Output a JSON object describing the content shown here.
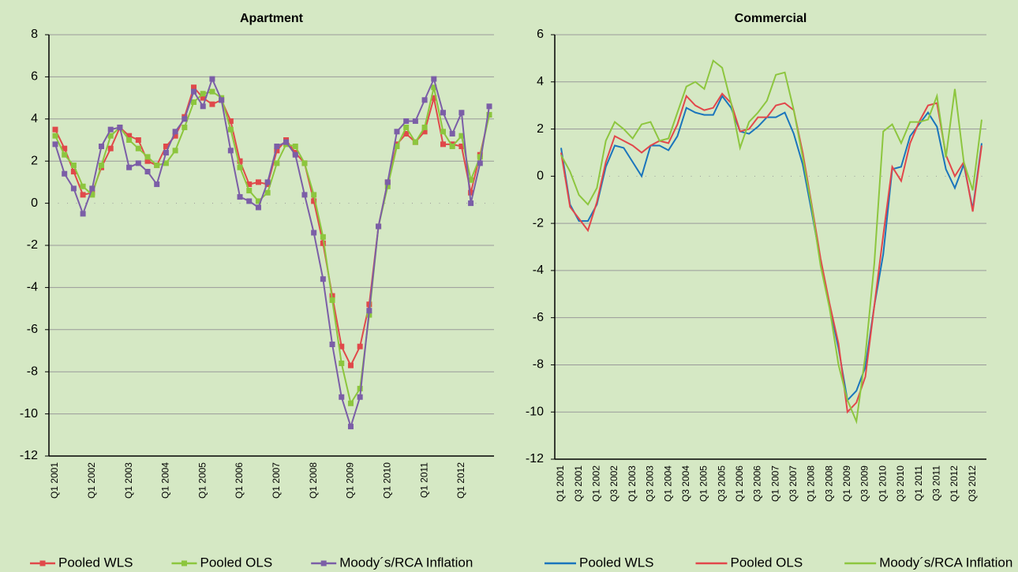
{
  "chart_data": [
    {
      "type": "line",
      "title": "Apartment",
      "marker": "square",
      "legend": "bottom",
      "categories": [
        "Q1 2001",
        null,
        null,
        null,
        "Q1 2002",
        null,
        null,
        null,
        "Q1 2003",
        null,
        null,
        null,
        "Q1 2004",
        null,
        null,
        null,
        "Q1 2005",
        null,
        null,
        null,
        "Q1 2006",
        null,
        null,
        null,
        "Q1 2007",
        null,
        null,
        null,
        "Q1 2008",
        null,
        null,
        null,
        "Q1 2009",
        null,
        null,
        null,
        "Q1 2010",
        null,
        null,
        null,
        "Q1 2011",
        null,
        null,
        null,
        "Q1 2012",
        null,
        null,
        null
      ],
      "series": [
        {
          "name": "Pooled WLS",
          "color": "#e0494a",
          "values": [
            3.5,
            2.6,
            1.5,
            0.4,
            0.5,
            1.7,
            2.6,
            3.6,
            3.2,
            3.0,
            2.0,
            1.8,
            2.7,
            3.2,
            4.1,
            5.5,
            5.0,
            4.7,
            4.9,
            3.9,
            2.0,
            0.9,
            1.0,
            0.9,
            2.5,
            3.0,
            2.4,
            1.9,
            0.1,
            -1.9,
            -4.4,
            -6.8,
            -7.7,
            -6.8,
            -4.8,
            -1.1,
            1.0,
            2.8,
            3.3,
            2.9,
            3.4,
            5.0,
            2.8,
            2.8,
            2.7,
            0.5,
            2.3,
            4.2
          ]
        },
        {
          "name": "Pooled OLS",
          "color": "#8cc63e",
          "values": [
            3.2,
            2.3,
            1.8,
            0.8,
            0.4,
            1.8,
            3.2,
            3.6,
            3.0,
            2.6,
            2.2,
            1.8,
            1.9,
            2.5,
            3.6,
            4.8,
            5.2,
            5.3,
            5.0,
            3.5,
            1.7,
            0.6,
            0.1,
            0.5,
            1.9,
            2.8,
            2.7,
            1.9,
            0.4,
            -1.6,
            -4.6,
            -7.6,
            -9.5,
            -8.8,
            -5.3,
            -1.1,
            0.8,
            2.7,
            3.6,
            2.9,
            3.6,
            5.5,
            3.4,
            2.7,
            3.2,
            1.1,
            2.2,
            4.2
          ]
        },
        {
          "name": "Moody´s/RCA Inflation",
          "color": "#7b5ea7",
          "values": [
            2.8,
            1.4,
            0.7,
            -0.5,
            0.7,
            2.7,
            3.5,
            3.6,
            1.7,
            1.9,
            1.5,
            0.9,
            2.4,
            3.4,
            4.0,
            5.3,
            4.6,
            5.9,
            4.9,
            2.5,
            0.3,
            0.1,
            -0.2,
            1.0,
            2.7,
            2.9,
            2.3,
            0.4,
            -1.4,
            -3.6,
            -6.7,
            -9.2,
            -10.6,
            -9.2,
            -5.1,
            -1.1,
            1.0,
            3.4,
            3.9,
            3.9,
            4.9,
            5.9,
            4.3,
            3.3,
            4.3,
            0.0,
            1.9,
            4.6
          ]
        }
      ],
      "ylim": [
        -12,
        8
      ],
      "yticks": [
        -12,
        -10,
        -8,
        -6,
        -4,
        -2,
        0,
        2,
        4,
        6,
        8
      ],
      "grid": true
    },
    {
      "type": "line",
      "title": "Commercial",
      "legend": "bottom",
      "categories": [
        "Q1 2001",
        null,
        "Q3 2001",
        null,
        "Q1 2002",
        null,
        "Q3 2002",
        null,
        "Q1 2003",
        null,
        "Q3 2003",
        null,
        "Q1 2004",
        null,
        "Q3 2004",
        null,
        "Q1 2005",
        null,
        "Q3 2005",
        null,
        "Q1 2006",
        null,
        "Q3 2006",
        null,
        "Q1 2007",
        null,
        "Q3 2007",
        null,
        "Q1 2008",
        null,
        "Q3 2008",
        null,
        "Q1 2009",
        null,
        "Q3 2009",
        null,
        "Q1 2010",
        null,
        "Q3 2010",
        null,
        "Q1 2011",
        null,
        "Q3 2011",
        null,
        "Q1 2012",
        null,
        "Q3 2012",
        null
      ],
      "series": [
        {
          "name": "Pooled WLS",
          "color": "#1a75bc",
          "values": [
            1.2,
            -1.2,
            -1.9,
            -1.9,
            -1.2,
            0.4,
            1.3,
            1.2,
            0.6,
            0.0,
            1.3,
            1.3,
            1.1,
            1.7,
            2.9,
            2.7,
            2.6,
            2.6,
            3.4,
            2.9,
            1.9,
            1.8,
            2.1,
            2.5,
            2.5,
            2.7,
            1.8,
            0.5,
            -1.5,
            -3.6,
            -5.5,
            -7.3,
            -9.5,
            -9.1,
            -8.1,
            -5.5,
            -3.3,
            0.3,
            0.4,
            1.7,
            2.2,
            2.7,
            2.1,
            0.3,
            -0.5,
            0.5,
            -1.4,
            1.4
          ]
        },
        {
          "name": "Pooled OLS",
          "color": "#e2474b",
          "values": [
            1.0,
            -1.3,
            -1.8,
            -2.3,
            -1.1,
            0.6,
            1.7,
            1.5,
            1.3,
            1.0,
            1.3,
            1.5,
            1.4,
            2.2,
            3.4,
            3.0,
            2.8,
            2.9,
            3.5,
            3.1,
            1.9,
            2.0,
            2.5,
            2.5,
            3.0,
            3.1,
            2.8,
            1.0,
            -1.2,
            -3.5,
            -5.4,
            -7.1,
            -10.0,
            -9.6,
            -8.5,
            -5.5,
            -2.5,
            0.4,
            -0.2,
            1.4,
            2.3,
            3.0,
            3.1,
            0.9,
            0.0,
            0.6,
            -1.5,
            1.3
          ]
        },
        {
          "name": "Moody´s/RCA Inflation",
          "color": "#8dc63f",
          "values": [
            0.9,
            0.2,
            -0.8,
            -1.2,
            -0.5,
            1.5,
            2.3,
            2.0,
            1.6,
            2.2,
            2.3,
            1.5,
            1.6,
            2.7,
            3.8,
            4.0,
            3.7,
            4.9,
            4.6,
            3.1,
            1.2,
            2.3,
            2.7,
            3.2,
            4.3,
            4.4,
            2.8,
            0.8,
            -1.3,
            -3.8,
            -5.6,
            -8.0,
            -9.5,
            -10.4,
            -7.6,
            -3.7,
            1.9,
            2.2,
            1.4,
            2.3,
            2.3,
            2.4,
            3.4,
            0.8,
            3.7,
            0.6,
            -0.6,
            2.4
          ]
        }
      ],
      "ylim": [
        -12,
        6
      ],
      "yticks": [
        -12,
        -10,
        -8,
        -6,
        -4,
        -2,
        0,
        2,
        4,
        6
      ],
      "grid": true
    }
  ]
}
